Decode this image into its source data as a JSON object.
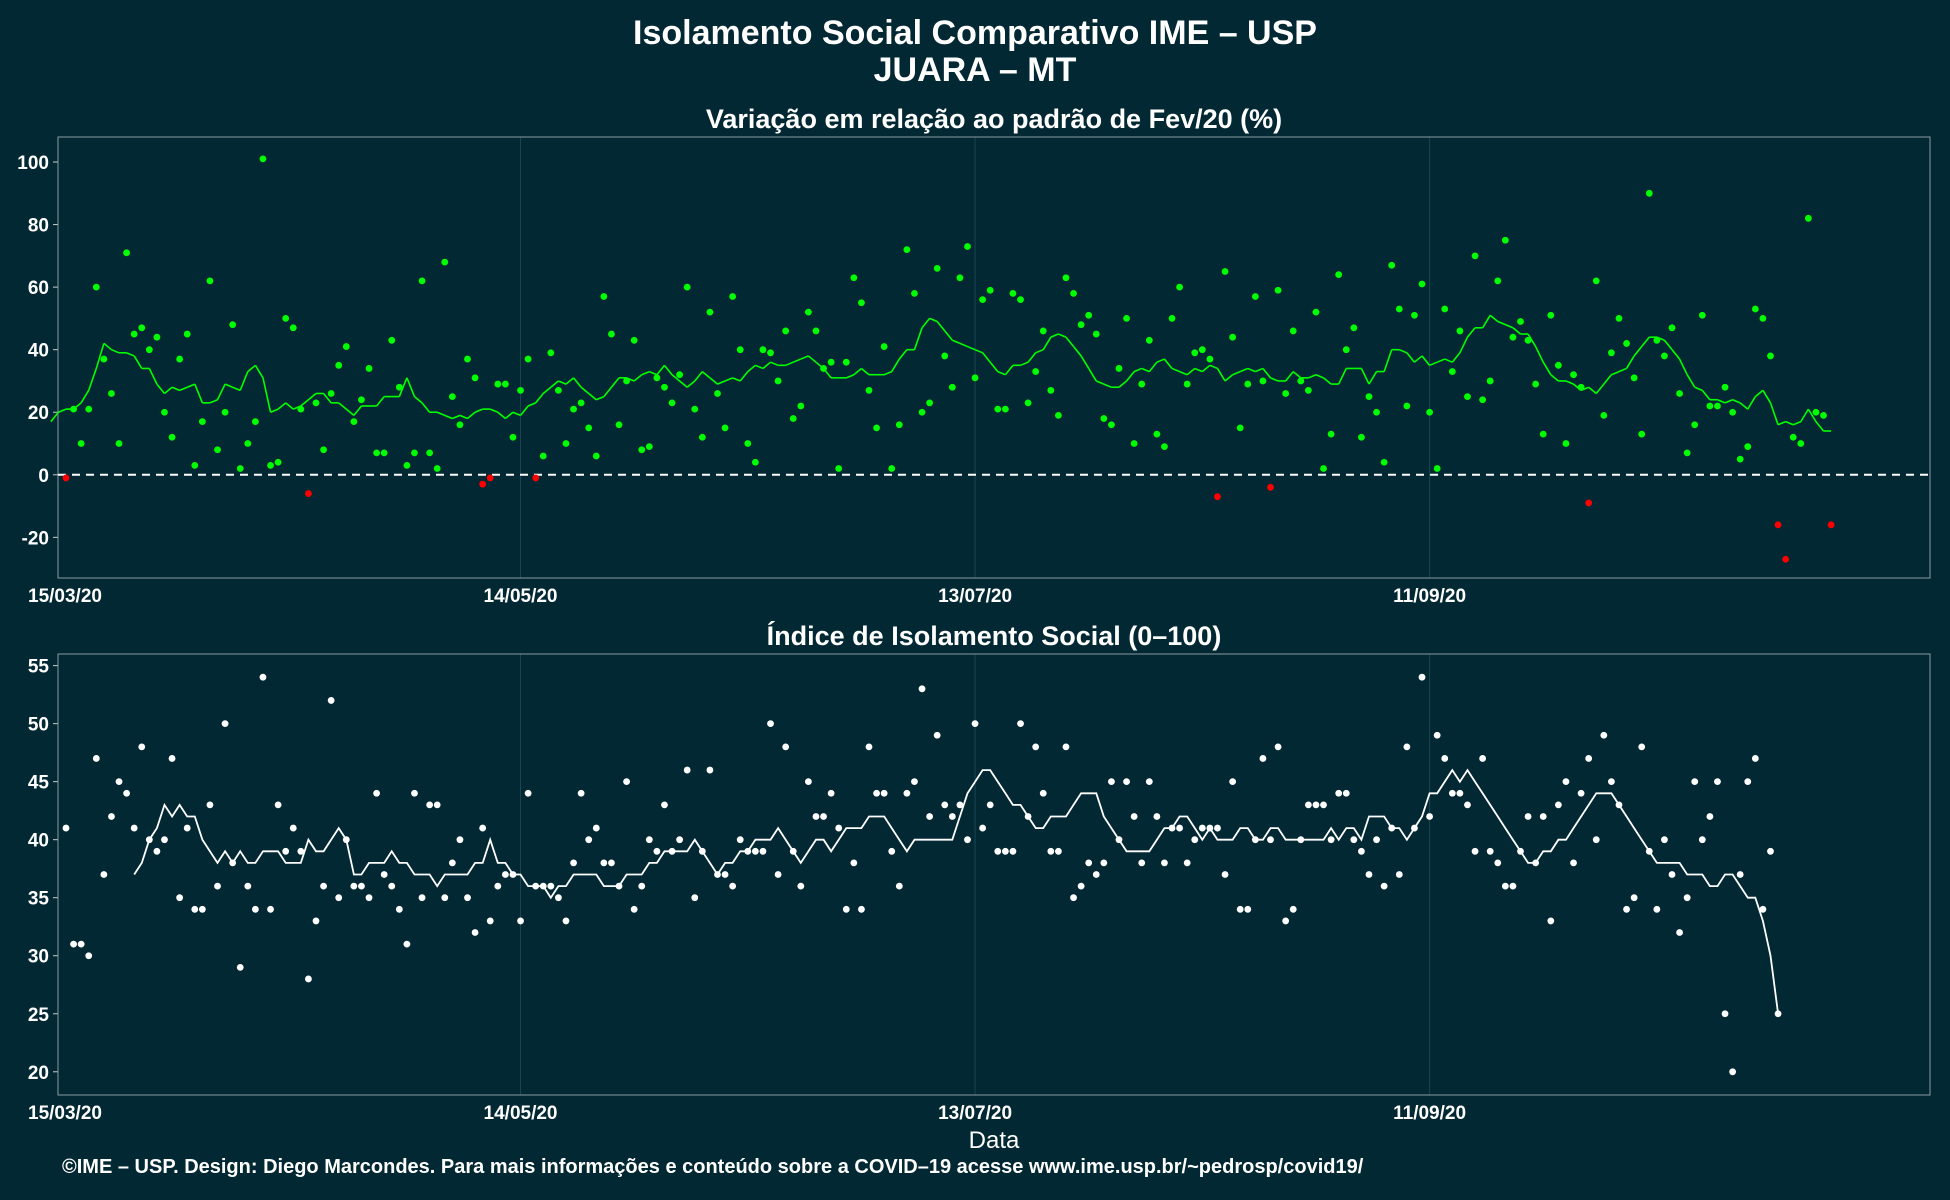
{
  "header": {
    "title": "Isolamento Social Comparativo IME – USP",
    "subtitle": "JUARA – MT"
  },
  "footer": {
    "credit": "©IME – USP. Design: Diego Marcondes. Para mais informações e conteúdo sobre a COVID–19 acesse www.ime.usp.br/~pedrosp/covid19/"
  },
  "colors": {
    "background": "#022833",
    "positive": "#00ff00",
    "negative": "#ff0000",
    "index": "#ffffff"
  },
  "chart_data": [
    {
      "type": "scatter",
      "title": "Variação em relação ao padrão de Fev/20 (%)",
      "xlabel": "",
      "ylabel": "",
      "x_start": "15/03/20",
      "x_end": "15/11/20",
      "xticks": [
        "15/03/20",
        "14/05/20",
        "13/07/20",
        "11/09/20"
      ],
      "yticks": [
        -20,
        0,
        20,
        40,
        60,
        80,
        100
      ],
      "ylim": [
        -33,
        108
      ],
      "reference_line": 0,
      "grid": true,
      "points_y": [
        -1,
        21,
        10,
        21,
        60,
        37,
        26,
        10,
        71,
        45,
        47,
        40,
        44,
        20,
        12,
        37,
        45,
        3,
        17,
        62,
        8,
        20,
        48,
        2,
        10,
        17,
        101,
        3,
        4,
        50,
        47,
        21,
        -6,
        23,
        8,
        26,
        35,
        41,
        17,
        24,
        34,
        7,
        7,
        43,
        28,
        3,
        7,
        62,
        7,
        2,
        68,
        25,
        16,
        37,
        31,
        -3,
        -1,
        29,
        29,
        12,
        27,
        37,
        -1,
        6,
        39,
        27,
        10,
        21,
        23,
        15,
        6,
        57,
        45,
        16,
        30,
        43,
        8,
        9,
        31,
        28,
        23,
        32,
        60,
        21,
        12,
        52,
        26,
        15,
        57,
        40,
        10,
        4,
        40,
        39,
        30,
        46,
        18,
        22,
        52,
        46,
        34,
        36,
        2,
        36,
        63,
        55,
        27,
        15,
        41,
        2,
        16,
        72,
        58,
        20,
        23,
        66,
        38,
        28,
        63,
        73,
        31,
        56,
        59,
        21,
        21,
        58,
        56,
        23,
        33,
        46,
        27,
        19,
        63,
        58,
        48,
        51,
        45,
        18,
        16,
        34,
        50,
        10,
        29,
        43,
        13,
        9,
        50,
        60,
        29,
        39,
        40,
        37,
        -7,
        65,
        44,
        15,
        29,
        57,
        30,
        -4,
        59,
        26,
        46,
        30,
        27,
        52,
        2,
        13,
        64,
        40,
        47,
        12,
        25,
        20,
        4,
        67,
        53,
        22,
        51,
        61,
        20,
        2,
        53,
        33,
        46,
        25,
        70,
        24,
        30,
        62,
        75,
        44,
        49,
        43,
        29,
        13,
        51,
        35,
        10,
        32,
        28,
        -9,
        62,
        19,
        39,
        50,
        42,
        31,
        13,
        90,
        43,
        38,
        47,
        26,
        7,
        16,
        51,
        22,
        22,
        28,
        20,
        5,
        9,
        53,
        50,
        38,
        -16,
        -27,
        12,
        10,
        82,
        20,
        19,
        -16
      ],
      "moving_average": [
        17,
        20,
        21,
        21,
        23,
        27,
        34,
        42,
        40,
        39,
        39,
        38,
        34,
        34,
        29,
        26,
        28,
        27,
        28,
        29,
        23,
        23,
        24,
        29,
        28,
        27,
        33,
        35,
        31,
        20,
        21,
        23,
        21,
        22,
        24,
        26,
        26,
        23,
        23,
        21,
        19,
        22,
        22,
        22,
        25,
        25,
        25,
        31,
        25,
        23,
        20,
        20,
        19,
        18,
        19,
        18,
        20,
        21,
        21,
        20,
        18,
        20,
        19,
        22,
        23,
        26,
        28,
        30,
        29,
        31,
        28,
        26,
        24,
        25,
        28,
        31,
        31,
        30,
        32,
        33,
        32,
        35,
        32,
        30,
        28,
        30,
        33,
        31,
        29,
        30,
        31,
        30,
        33,
        35,
        34,
        36,
        35,
        35,
        36,
        37,
        38,
        36,
        34,
        31,
        31,
        31,
        32,
        34,
        32,
        32,
        32,
        33,
        37,
        40,
        40,
        47,
        50,
        49,
        46,
        43,
        42,
        41,
        40,
        39,
        36,
        33,
        32,
        35,
        35,
        36,
        39,
        40,
        44,
        45,
        44,
        41,
        38,
        34,
        30,
        29,
        28,
        28,
        30,
        33,
        34,
        33,
        36,
        37,
        34,
        33,
        32,
        34,
        33,
        35,
        34,
        30,
        32,
        33,
        34,
        33,
        34,
        31,
        30,
        30,
        33,
        31,
        31,
        32,
        31,
        29,
        29,
        34,
        34,
        34,
        29,
        33,
        33,
        40,
        40,
        39,
        36,
        38,
        35,
        36,
        37,
        36,
        39,
        44,
        47,
        47,
        51,
        49,
        48,
        47,
        45,
        45,
        41,
        36,
        32,
        30,
        30,
        29,
        27,
        28,
        26,
        29,
        32,
        33,
        34,
        38,
        41,
        44,
        44,
        43,
        40,
        37,
        32,
        28,
        27,
        24,
        24,
        23,
        24,
        23,
        21,
        25,
        27,
        23,
        16,
        17,
        16,
        17,
        21,
        17,
        14,
        14
      ],
      "series": [
        {
          "name": "",
          "color": "#00ff00"
        },
        {
          "name": "",
          "color": "#ff0000"
        }
      ]
    },
    {
      "type": "scatter",
      "title": "Índice de Isolamento Social (0–100)",
      "xlabel": "Data",
      "ylabel": "",
      "x_start": "15/03/20",
      "x_end": "15/11/20",
      "xticks": [
        "15/03/20",
        "14/05/20",
        "13/07/20",
        "11/09/20"
      ],
      "yticks": [
        20,
        25,
        30,
        35,
        40,
        45,
        50,
        55
      ],
      "ylim": [
        18,
        56
      ],
      "grid": true,
      "points_y": [
        41,
        31,
        31,
        30,
        47,
        37,
        42,
        45,
        44,
        41,
        48,
        40,
        39,
        40,
        47,
        35,
        41,
        34,
        34,
        43,
        36,
        50,
        38,
        29,
        36,
        34,
        54,
        34,
        43,
        39,
        41,
        39,
        28,
        33,
        36,
        52,
        35,
        40,
        36,
        36,
        35,
        44,
        37,
        36,
        34,
        31,
        44,
        35,
        43,
        43,
        35,
        38,
        40,
        35,
        32,
        41,
        33,
        36,
        37,
        37,
        33,
        44,
        36,
        36,
        36,
        35,
        33,
        38,
        44,
        40,
        41,
        38,
        38,
        36,
        45,
        34,
        36,
        40,
        39,
        43,
        39,
        40,
        46,
        35,
        39,
        46,
        37,
        37,
        36,
        40,
        39,
        39,
        39,
        50,
        37,
        48,
        39,
        36,
        45,
        42,
        42,
        44,
        41,
        34,
        38,
        34,
        48,
        44,
        44,
        39,
        36,
        44,
        45,
        53,
        42,
        49,
        43,
        42,
        43,
        40,
        50,
        41,
        43,
        39,
        39,
        39,
        50,
        42,
        48,
        44,
        39,
        39,
        48,
        35,
        36,
        38,
        37,
        38,
        45,
        40,
        45,
        42,
        38,
        45,
        42,
        38,
        41,
        41,
        38,
        40,
        41,
        41,
        41,
        37,
        45,
        34,
        34,
        40,
        47,
        40,
        48,
        33,
        34,
        40,
        43,
        43,
        43,
        40,
        44,
        44,
        40,
        39,
        37,
        40,
        36,
        41,
        37,
        48,
        41,
        54,
        42,
        49,
        47,
        44,
        44,
        43,
        39,
        47,
        39,
        38,
        36,
        36,
        39,
        42,
        38,
        42,
        33,
        43,
        45,
        38,
        44,
        47,
        40,
        49,
        45,
        43,
        34,
        35,
        48,
        39,
        34,
        40,
        37,
        32,
        35,
        45,
        40,
        42,
        45,
        25,
        20,
        37,
        45,
        47,
        34,
        39,
        25
      ],
      "moving_average": [
        37,
        38,
        40,
        41,
        43,
        42,
        43,
        42,
        42,
        40,
        39,
        38,
        39,
        38,
        39,
        38,
        38,
        39,
        39,
        39,
        38,
        38,
        38,
        40,
        39,
        39,
        40,
        41,
        40,
        37,
        37,
        38,
        38,
        38,
        39,
        38,
        38,
        37,
        37,
        37,
        36,
        37,
        37,
        37,
        37,
        38,
        38,
        40,
        38,
        38,
        37,
        37,
        36,
        36,
        36,
        35,
        36,
        36,
        37,
        37,
        37,
        37,
        36,
        36,
        36,
        37,
        37,
        37,
        38,
        38,
        39,
        39,
        39,
        39,
        40,
        39,
        38,
        37,
        38,
        38,
        39,
        39,
        40,
        40,
        40,
        41,
        40,
        39,
        38,
        39,
        40,
        40,
        39,
        40,
        41,
        41,
        41,
        42,
        42,
        42,
        41,
        40,
        39,
        40,
        40,
        40,
        40,
        40,
        40,
        42,
        44,
        45,
        46,
        46,
        45,
        44,
        43,
        43,
        42,
        41,
        41,
        42,
        42,
        42,
        43,
        44,
        44,
        44,
        42,
        41,
        40,
        39,
        39,
        39,
        39,
        40,
        41,
        41,
        42,
        42,
        41,
        40,
        41,
        40,
        40,
        40,
        41,
        41,
        40,
        40,
        41,
        41,
        40,
        40,
        40,
        40,
        40,
        40,
        41,
        40,
        41,
        41,
        40,
        42,
        42,
        42,
        41,
        41,
        40,
        41,
        42,
        44,
        44,
        45,
        46,
        45,
        46,
        45,
        44,
        43,
        42,
        41,
        40,
        39,
        38,
        38,
        39,
        39,
        40,
        40,
        41,
        42,
        43,
        44,
        44,
        44,
        43,
        42,
        41,
        40,
        39,
        38,
        38,
        38,
        38,
        37,
        37,
        37,
        36,
        36,
        37,
        37,
        36,
        35,
        35,
        33,
        30,
        25
      ],
      "series": [
        {
          "name": "",
          "color": "#ffffff"
        }
      ]
    }
  ]
}
